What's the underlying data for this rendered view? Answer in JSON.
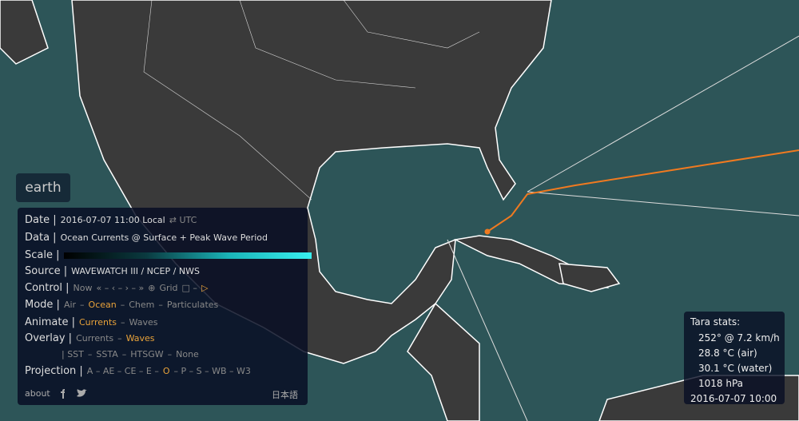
{
  "earth_button": "earth",
  "menu": {
    "rows": [
      {
        "label": "Date |",
        "items": [
          {
            "text": "2016-07-07 11:00 Local"
          },
          {
            "text": "⇄ UTC",
            "dim": true
          }
        ]
      },
      {
        "label": "Data |",
        "items": [
          {
            "text": "Ocean Currents @ Surface + Peak Wave Period"
          }
        ]
      },
      {
        "label": "Scale |",
        "scale": true,
        "items": []
      },
      {
        "label": "Source |",
        "items": [
          {
            "text": "WAVEWATCH III / NCEP / NWS"
          }
        ]
      },
      {
        "label": "Control |",
        "items": [
          {
            "text": "Now",
            "dim": true
          },
          {
            "text": "« – ‹ – › – »",
            "dim": true
          },
          {
            "text": "⊕",
            "dim": true
          },
          {
            "text": "Grid",
            "dim": true
          },
          {
            "text": "□ –",
            "dim": true
          },
          {
            "text": "▷",
            "active": true
          }
        ]
      },
      {
        "label": "Mode |",
        "items": [
          {
            "text": "Air",
            "dim": true
          },
          {
            "text": "–",
            "dim": true
          },
          {
            "text": "Ocean",
            "active": true
          },
          {
            "text": "–",
            "dim": true
          },
          {
            "text": "Chem",
            "dim": true
          },
          {
            "text": "–",
            "dim": true
          },
          {
            "text": "Particulates",
            "dim": true
          }
        ]
      },
      {
        "label": "Animate |",
        "items": [
          {
            "text": "Currents",
            "active": true
          },
          {
            "text": "–",
            "dim": true
          },
          {
            "text": "Waves",
            "dim": true
          }
        ]
      },
      {
        "label": "Overlay |",
        "items": [
          {
            "text": "Currents",
            "dim": true
          },
          {
            "text": "–",
            "dim": true
          },
          {
            "text": "Waves",
            "active": true
          }
        ]
      },
      {
        "items": [
          {
            "text": "| SST",
            "dim": true
          },
          {
            "text": "–",
            "dim": true
          },
          {
            "text": "SSTA",
            "dim": true
          },
          {
            "text": "–",
            "dim": true
          },
          {
            "text": "HTSGW",
            "dim": true
          },
          {
            "text": "–",
            "dim": true
          },
          {
            "text": "None",
            "dim": true
          }
        ]
      },
      {
        "label": "Projection |",
        "items": [
          {
            "text": "A – AE – CE – E –",
            "dim": true
          },
          {
            "text": "O",
            "active": true
          },
          {
            "text": "– P – S – WB – W3",
            "dim": true
          }
        ]
      }
    ],
    "footer": {
      "about": "about",
      "language": "日本語"
    }
  },
  "stats": {
    "title": "Tara stats:",
    "lines": [
      "252° @ 7.2 km/h",
      "28.8 °C (air)",
      "30.1 °C (water)",
      "1018 hPa",
      "2016-07-07 10:00"
    ]
  }
}
